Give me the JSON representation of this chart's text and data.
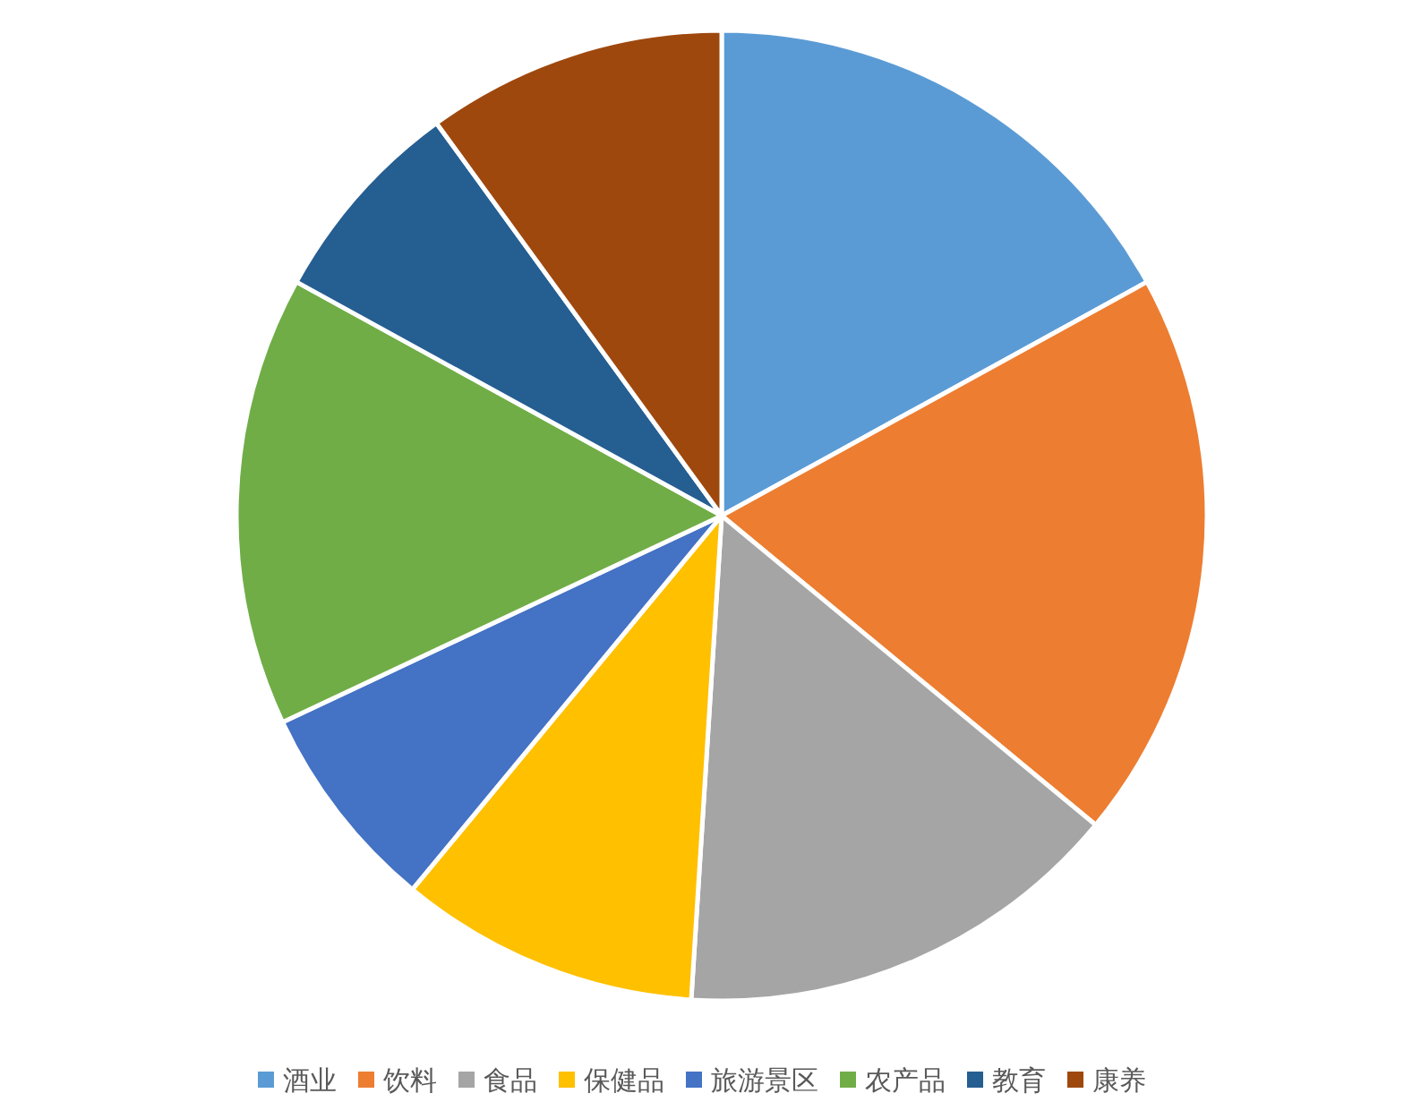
{
  "chart_data": {
    "type": "pie",
    "categories": [
      "酒业",
      "饮料",
      "食品",
      "保健品",
      "旅游景区",
      "农产品",
      "教育",
      "康养"
    ],
    "values": [
      17,
      19,
      15,
      10,
      7,
      15,
      7,
      10
    ],
    "colors": [
      "#5b9bd5",
      "#ed7d31",
      "#a5a5a5",
      "#ffc000",
      "#4472c4",
      "#70ad47",
      "#255e91",
      "#9e480e"
    ],
    "legend": "bottom"
  }
}
